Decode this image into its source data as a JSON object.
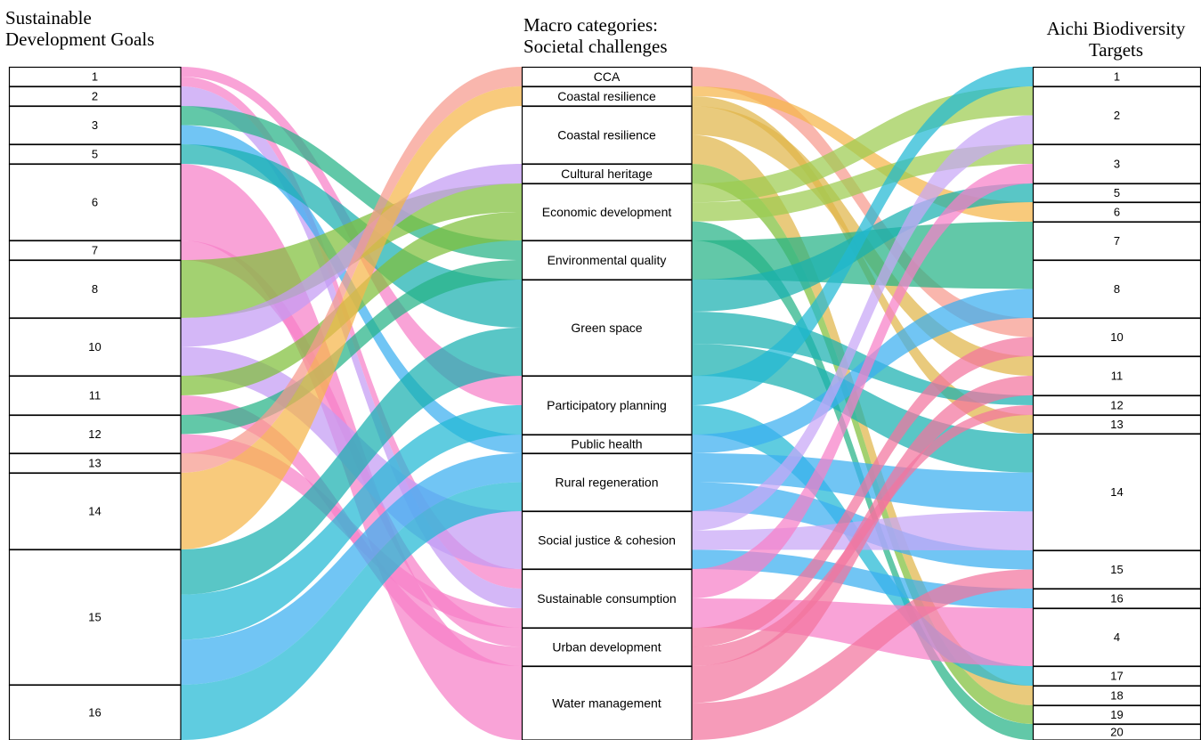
{
  "headers": {
    "left_line1": "Sustainable",
    "left_line2": "Development Goals",
    "mid_line1": "Macro categories:",
    "mid_line2": "Societal challenges",
    "right_line1": "Aichi Biodiversity",
    "right_line2": "Targets"
  },
  "sdg_nodes": [
    "1",
    "2",
    "3",
    "5",
    "6",
    "7",
    "8",
    "10",
    "11",
    "12",
    "13",
    "14",
    "15",
    "16"
  ],
  "challenge_nodes": [
    "CCA",
    "Coastal resilience",
    "Coastal resilience",
    "Cultural heritage",
    "Economic development",
    "Environmental quality",
    "Green space",
    "Participatory planning",
    "Public health",
    "Rural regeneration",
    "Social justice &  cohesion",
    "Sustainable consumption",
    "Urban development",
    "Water management"
  ],
  "aichi_nodes": [
    "1",
    "2",
    "3",
    "5",
    "6",
    "7",
    "8",
    "10",
    "11",
    "12",
    "13",
    "14",
    "15",
    "16",
    "4",
    "17",
    "18",
    "19",
    "20"
  ],
  "colors": {
    "pink": "#f77fc8",
    "lavender": "#c39bf4",
    "green": "#25b386",
    "teal": "#19b0b0",
    "olive": "#7fbf3a",
    "orange": "#f5b54a",
    "sky": "#3aaef0",
    "cyan": "#21b8d4",
    "salmon": "#f79a8e",
    "gold": "#e0b54a",
    "lime": "#9ccc50",
    "rose": "#f3749e",
    "violet": "#c7a6f7"
  },
  "left_flows": [
    {
      "from": "1",
      "to": "Participatory planning",
      "color": "pink"
    },
    {
      "from": "1",
      "to": "Sustainable consumption",
      "color": "pink"
    },
    {
      "from": "2",
      "to": "Sustainable consumption",
      "color": "lavender"
    },
    {
      "from": "3",
      "to": "Environmental quality",
      "color": "green"
    },
    {
      "from": "3",
      "to": "Public health",
      "color": "sky"
    },
    {
      "from": "5",
      "to": "Green space",
      "color": "teal"
    },
    {
      "from": "6",
      "to": "Water management",
      "color": "pink"
    },
    {
      "from": "7",
      "to": "Urban development",
      "color": "pink"
    },
    {
      "from": "8",
      "to": "Economic development",
      "color": "olive"
    },
    {
      "from": "10",
      "to": "Social justice &  cohesion",
      "color": "lavender"
    },
    {
      "from": "10",
      "to": "Cultural heritage",
      "color": "lavender"
    },
    {
      "from": "11",
      "to": "Economic development",
      "color": "olive"
    },
    {
      "from": "11",
      "to": "Urban development",
      "color": "pink"
    },
    {
      "from": "12",
      "to": "Sustainable consumption",
      "color": "pink"
    },
    {
      "from": "12",
      "to": "Environmental quality",
      "color": "green"
    },
    {
      "from": "13",
      "to": "CCA",
      "color": "salmon"
    },
    {
      "from": "14",
      "to": "Coastal resilience",
      "color": "orange"
    },
    {
      "from": "15",
      "to": "Green space",
      "color": "teal"
    },
    {
      "from": "15",
      "to": "Participatory planning",
      "color": "cyan"
    },
    {
      "from": "15",
      "to": "Rural regeneration",
      "color": "sky"
    },
    {
      "from": "16",
      "to": "Rural regeneration",
      "color": "cyan"
    }
  ],
  "right_flows": [
    {
      "from": "CCA",
      "to": "10",
      "color": "salmon"
    },
    {
      "from": "Coastal resilience",
      "to": "6",
      "color": "orange"
    },
    {
      "from": "Coastal resilience",
      "to": "11",
      "color": "gold"
    },
    {
      "from": "Coastal resilience",
      "to": "13",
      "color": "gold"
    },
    {
      "from": "Coastal resilience",
      "to": "18",
      "color": "gold"
    },
    {
      "from": "Cultural heritage",
      "to": "19",
      "color": "olive"
    },
    {
      "from": "Economic development",
      "to": "2",
      "color": "lime"
    },
    {
      "from": "Economic development",
      "to": "3",
      "color": "lime"
    },
    {
      "from": "Economic development",
      "to": "20",
      "color": "green"
    },
    {
      "from": "Environmental quality",
      "to": "7",
      "color": "green"
    },
    {
      "from": "Environmental quality",
      "to": "8",
      "color": "green"
    },
    {
      "from": "Green space",
      "to": "5",
      "color": "teal"
    },
    {
      "from": "Green space",
      "to": "12",
      "color": "teal"
    },
    {
      "from": "Green space",
      "to": "14",
      "color": "teal"
    },
    {
      "from": "Participatory planning",
      "to": "1",
      "color": "cyan"
    },
    {
      "from": "Participatory planning",
      "to": "17",
      "color": "cyan"
    },
    {
      "from": "Public health",
      "to": "8",
      "color": "sky"
    },
    {
      "from": "Rural regeneration",
      "to": "14",
      "color": "sky"
    },
    {
      "from": "Rural regeneration",
      "to": "15",
      "color": "sky"
    },
    {
      "from": "Social justice &  cohesion",
      "to": "14",
      "color": "violet"
    },
    {
      "from": "Social justice &  cohesion",
      "to": "16",
      "color": "sky"
    },
    {
      "from": "Social justice &  cohesion",
      "to": "2",
      "color": "violet"
    },
    {
      "from": "Sustainable consumption",
      "to": "4",
      "color": "pink"
    },
    {
      "from": "Sustainable consumption",
      "to": "3",
      "color": "pink"
    },
    {
      "from": "Urban development",
      "to": "10",
      "color": "rose"
    },
    {
      "from": "Urban development",
      "to": "12",
      "color": "rose"
    },
    {
      "from": "Water management",
      "to": "15",
      "color": "rose"
    },
    {
      "from": "Water management",
      "to": "11",
      "color": "rose"
    }
  ]
}
